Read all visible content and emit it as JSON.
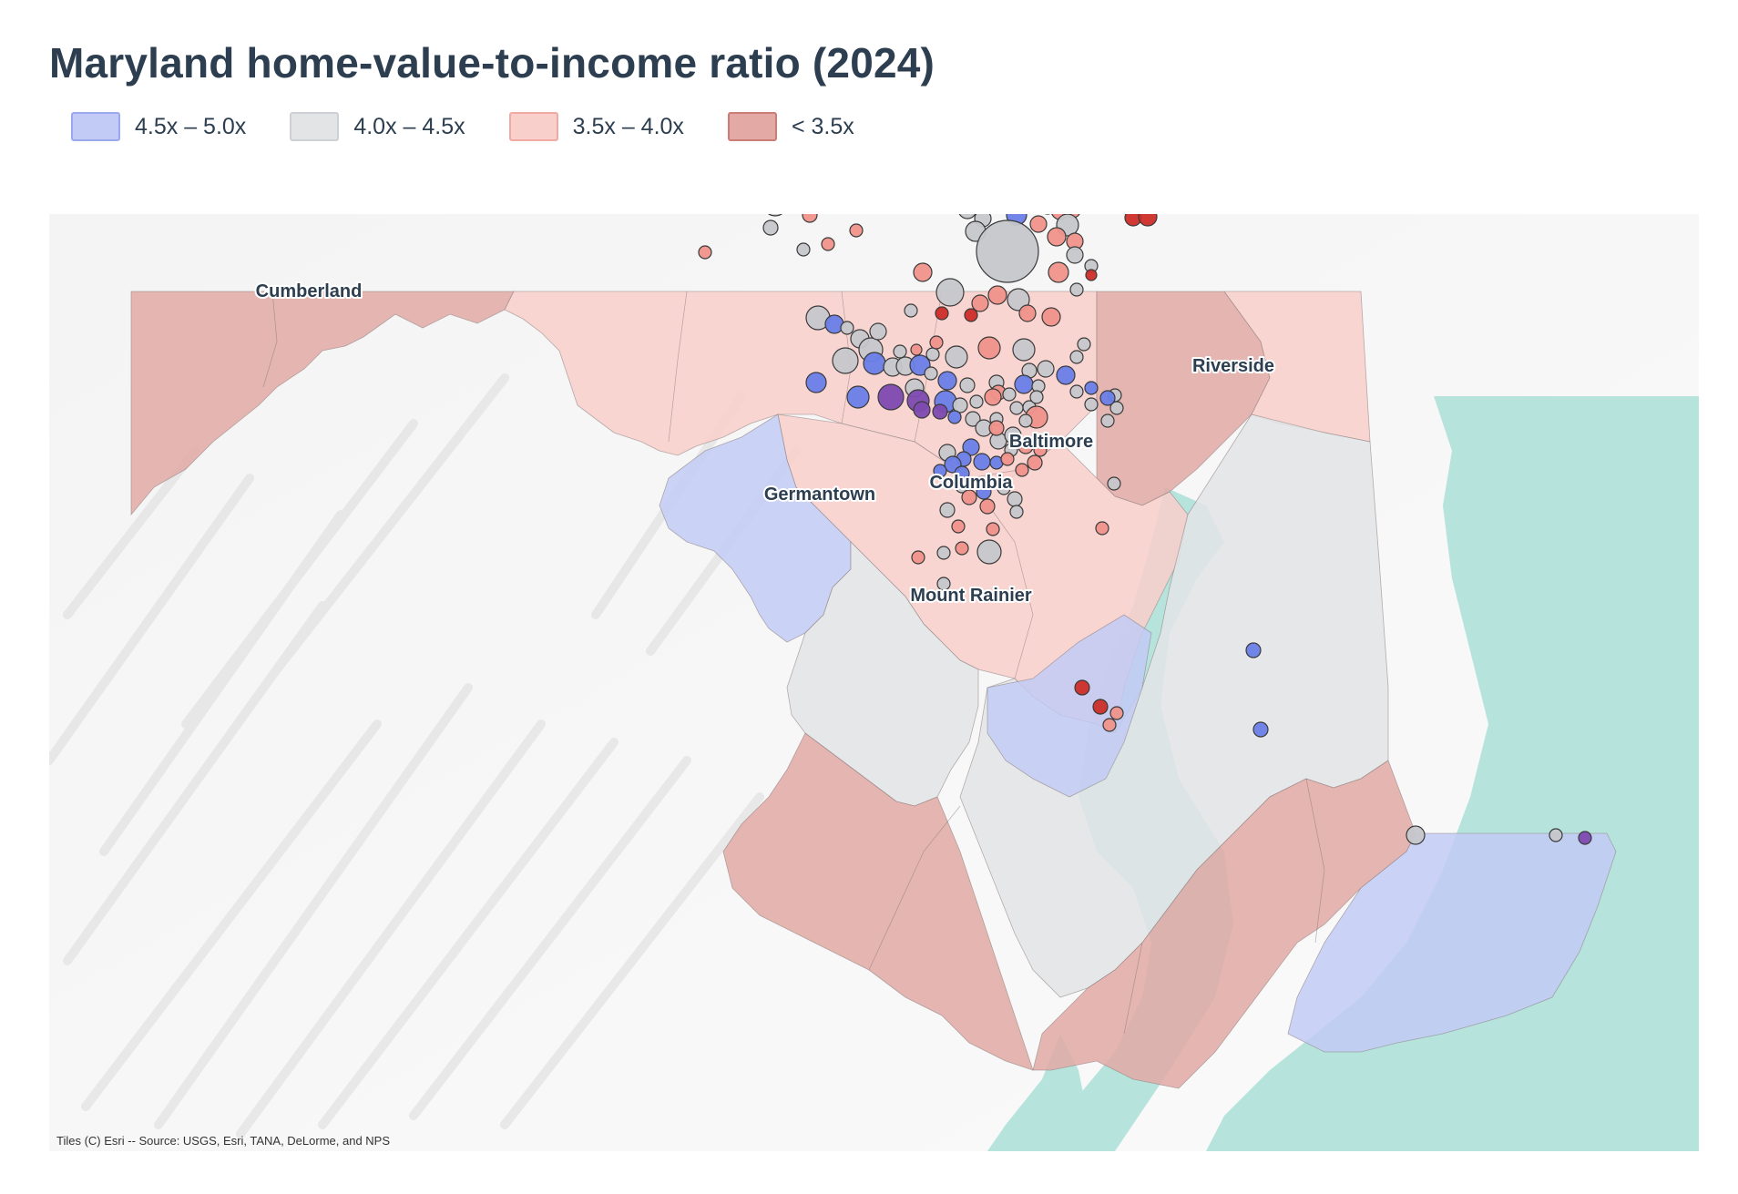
{
  "title": "Maryland home-value-to-income ratio (2024)",
  "legend": [
    {
      "label": "4.5x – 5.0x",
      "fill": "#c2cbf5",
      "stroke": "#9aa9ee"
    },
    {
      "label": "4.0x – 4.5x",
      "fill": "#e3e4e6",
      "stroke": "#cdd0d4"
    },
    {
      "label": "3.5x – 4.0x",
      "fill": "#f9cfcb",
      "stroke": "#f0aaa3"
    },
    {
      "label": "< 3.5x",
      "fill": "#e2a9a5",
      "stroke": "#cc7c76"
    }
  ],
  "point_colors": {
    "blue": "#6a7ee8",
    "grey": "#c6c7cb",
    "salmon": "#f0928a",
    "red": "#cc2d28",
    "purple": "#7d4ab0"
  },
  "water_color": "#b7e3dd",
  "labels": {
    "cumberland": "Cumberland",
    "riverside": "Riverside",
    "baltimore": "Baltimore",
    "columbia": "Columbia",
    "germantown": "Germantown",
    "mount_rainier": "Mount Rainier"
  },
  "attribution": "Tiles (C) Esri -- Source: USGS, Esri, TANA, DeLorme, and NPS"
}
